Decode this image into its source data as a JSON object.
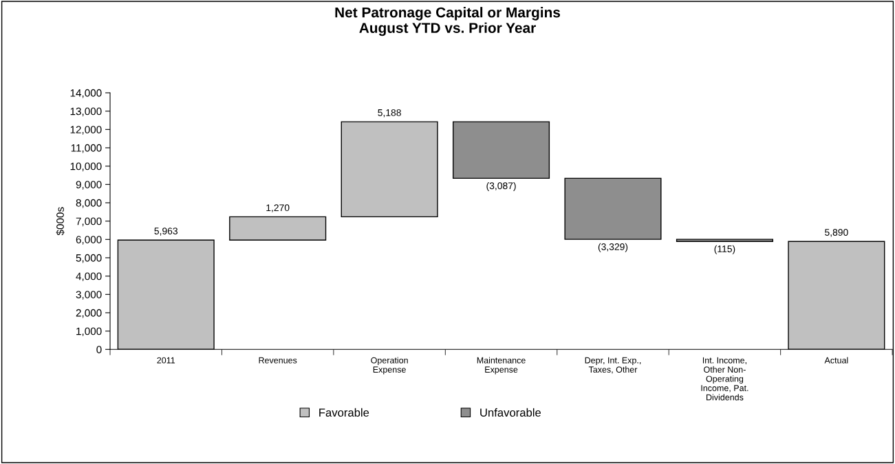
{
  "chart_data": {
    "type": "bar",
    "title": "Net Patronage Capital or Margins\nAugust YTD vs. Prior Year",
    "ylabel": "$000s",
    "categories": [
      "2011",
      "Revenues",
      "Operation\nExpense",
      "Maintenance\nExpense",
      "Depr, Int. Exp.,\nTaxes, Other",
      "Int. Income,\nOther Non-\nOperating\nIncome, Pat.\nDividends",
      "Actual"
    ],
    "series": [
      {
        "name": "Favorable",
        "color": "#c0c0c0",
        "base": [
          0,
          5963,
          7233,
          null,
          null,
          null,
          0
        ],
        "values": [
          5963,
          1270,
          5188,
          null,
          null,
          null,
          5890
        ],
        "value_labels": [
          "5,963",
          "1,270",
          "5,188",
          null,
          null,
          null,
          "5,890"
        ]
      },
      {
        "name": "Unfavorable",
        "color": "#8e8e8e",
        "base": [
          null,
          null,
          null,
          12421,
          9334,
          6005,
          null
        ],
        "values": [
          null,
          null,
          null,
          -3087,
          -3329,
          -115,
          null
        ],
        "value_labels": [
          null,
          null,
          null,
          "(3,087)",
          "(3,329)",
          "(115)",
          null
        ]
      }
    ],
    "ylim": [
      0,
      14000
    ],
    "yticks": [
      {
        "value": 0,
        "label": "0"
      },
      {
        "value": 1000,
        "label": "1,000"
      },
      {
        "value": 2000,
        "label": "2,000"
      },
      {
        "value": 3000,
        "label": "3,000"
      },
      {
        "value": 4000,
        "label": "4,000"
      },
      {
        "value": 5000,
        "label": "5,000"
      },
      {
        "value": 6000,
        "label": "6,000"
      },
      {
        "value": 7000,
        "label": "7,000"
      },
      {
        "value": 8000,
        "label": "8,000"
      },
      {
        "value": 9000,
        "label": "9,000"
      },
      {
        "value": 10000,
        "label": "10,000"
      },
      {
        "value": 11000,
        "label": "11,000"
      },
      {
        "value": 12000,
        "label": "12,000"
      },
      {
        "value": 13000,
        "label": "13,000"
      },
      {
        "value": 14000,
        "label": "14,000"
      }
    ],
    "grid": false,
    "legend": "bottom"
  }
}
